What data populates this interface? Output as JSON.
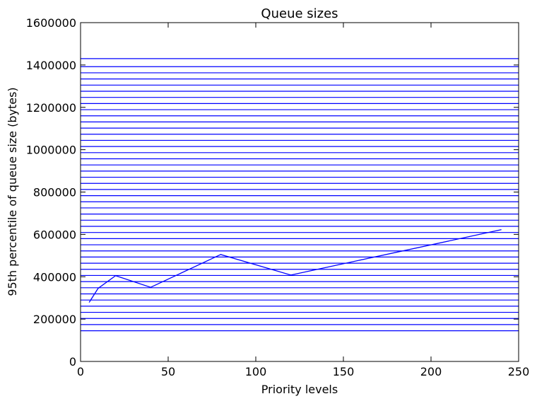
{
  "chart_data": {
    "type": "line",
    "title": "Queue sizes",
    "xlabel": "Priority levels",
    "ylabel": "95th percentile of queue size (bytes)",
    "xlim": [
      0,
      250
    ],
    "ylim": [
      0,
      1600000
    ],
    "x_ticks": [
      0,
      50,
      100,
      150,
      200,
      250
    ],
    "y_ticks": [
      0,
      200000,
      400000,
      600000,
      800000,
      1000000,
      1200000,
      1400000,
      1600000
    ],
    "grid": false,
    "legend": "none",
    "series": [
      {
        "color": "#0000ff",
        "x": [
          5,
          10,
          20,
          40,
          80,
          120,
          240
        ],
        "y": [
          280000,
          345000,
          405000,
          350000,
          505000,
          408000,
          622000
        ]
      }
    ],
    "horizontal_lines": {
      "color": "#0000ff",
      "y": [
        145000,
        174000,
        203000,
        232000,
        261000,
        290000,
        319000,
        348000,
        377000,
        406000,
        435000,
        464000,
        493000,
        522000,
        551000,
        580000,
        609000,
        638000,
        667000,
        696000,
        725000,
        754000,
        783000,
        812000,
        841000,
        870000,
        899000,
        928000,
        957000,
        986000,
        1015000,
        1044000,
        1073000,
        1102000,
        1131000,
        1160000,
        1189000,
        1218000,
        1247000,
        1276000,
        1305000,
        1334000,
        1363000,
        1392000,
        1430000
      ]
    }
  }
}
